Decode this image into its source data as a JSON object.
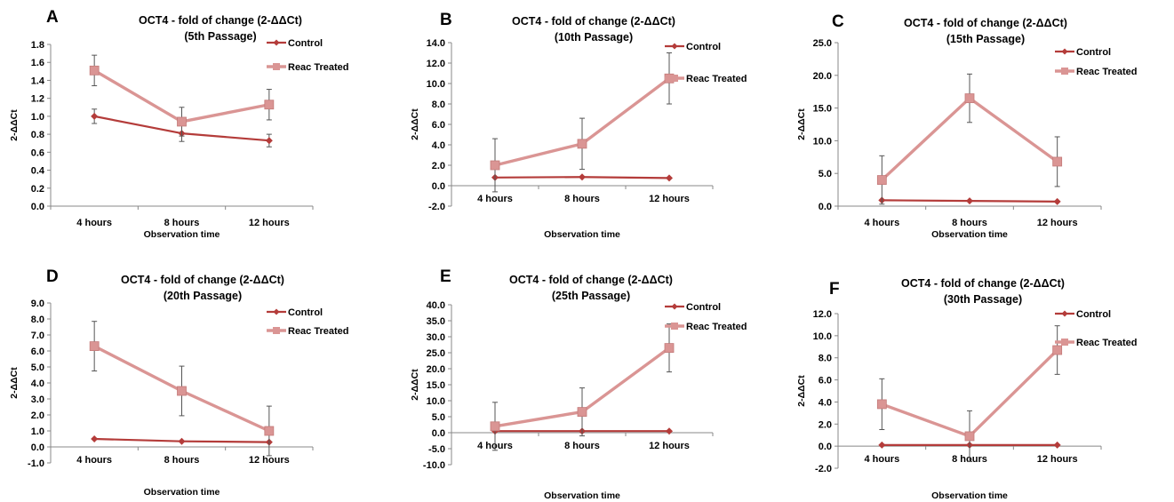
{
  "figure": {
    "colors": {
      "control": "#B43C3A",
      "reac_treated": "#DA9594",
      "axis": "#888888",
      "error_bar": "#555555"
    }
  },
  "chart_data": [
    {
      "panel": "A",
      "type": "line",
      "title_line1": "OCT4 - fold of change (2-ΔΔCt)",
      "title_line2": "(5th Passage)",
      "xlabel": "Observation time",
      "ylabel": "2-ΔΔCt",
      "categories": [
        "4 hours",
        "8 hours",
        "12 hours"
      ],
      "ylim": [
        0,
        1.8
      ],
      "ystep": 0.2,
      "decimals": 1,
      "series": [
        {
          "name": "Control",
          "values": [
            1.0,
            0.81,
            0.73
          ],
          "errors": [
            0.08,
            0.09,
            0.07
          ]
        },
        {
          "name": "Reac Treated",
          "values": [
            1.51,
            0.94,
            1.13
          ],
          "errors": [
            0.17,
            0.16,
            0.17
          ]
        }
      ]
    },
    {
      "panel": "B",
      "type": "line",
      "title_line1": "OCT4 - fold of change (2-ΔΔCt)",
      "title_line2": "(10th Passage)",
      "xlabel": "Observation time",
      "ylabel": "2-ΔΔCt",
      "categories": [
        "4 hours",
        "8 hours",
        "12 hours"
      ],
      "ylim": [
        -2,
        14
      ],
      "ystep": 2,
      "decimals": 1,
      "series": [
        {
          "name": "Control",
          "values": [
            0.8,
            0.85,
            0.75
          ],
          "errors": [
            0,
            0,
            0
          ]
        },
        {
          "name": "Reac Treated",
          "values": [
            2.0,
            4.1,
            10.5
          ],
          "errors": [
            2.6,
            2.5,
            2.5
          ]
        }
      ]
    },
    {
      "panel": "C",
      "type": "line",
      "title_line1": "OCT4 - fold of change (2-ΔΔCt)",
      "title_line2": "(15th Passage)",
      "xlabel": "Observation time",
      "ylabel": "2-ΔΔCt",
      "categories": [
        "4 hours",
        "8 hours",
        "12 hours"
      ],
      "ylim": [
        0,
        25
      ],
      "ystep": 5,
      "decimals": 1,
      "series": [
        {
          "name": "Control",
          "values": [
            0.9,
            0.8,
            0.7
          ],
          "errors": [
            0,
            0,
            0
          ]
        },
        {
          "name": "Reac Treated",
          "values": [
            4.0,
            16.5,
            6.8
          ],
          "errors": [
            3.7,
            3.7,
            3.8
          ]
        }
      ]
    },
    {
      "panel": "D",
      "type": "line",
      "title_line1": "OCT4 - fold of change (2-ΔΔCt)",
      "title_line2": "(20th Passage)",
      "xlabel": "Observation time",
      "ylabel": "2-ΔΔCt",
      "categories": [
        "4 hours",
        "8 hours",
        "12 hours"
      ],
      "ylim": [
        -1,
        9
      ],
      "ystep": 1,
      "decimals": 1,
      "series": [
        {
          "name": "Control",
          "values": [
            0.5,
            0.35,
            0.3
          ],
          "errors": [
            0,
            0,
            0
          ]
        },
        {
          "name": "Reac Treated",
          "values": [
            6.3,
            3.5,
            1.0
          ],
          "errors": [
            1.55,
            1.55,
            1.55
          ]
        }
      ]
    },
    {
      "panel": "E",
      "type": "line",
      "title_line1": "OCT4 - fold of change (2-ΔΔCt)",
      "title_line2": "(25th Passage)",
      "xlabel": "Observation time",
      "ylabel": "2-ΔΔCt",
      "categories": [
        "4 hours",
        "8 hours",
        "12 hours"
      ],
      "ylim": [
        -10,
        40
      ],
      "ystep": 5,
      "decimals": 1,
      "series": [
        {
          "name": "Control",
          "values": [
            0.5,
            0.5,
            0.5
          ],
          "errors": [
            0,
            0,
            0
          ]
        },
        {
          "name": "Reac Treated",
          "values": [
            2.0,
            6.5,
            26.5
          ],
          "errors": [
            7.5,
            7.5,
            7.5
          ]
        }
      ]
    },
    {
      "panel": "F",
      "type": "line",
      "title_line1": "OCT4  - fold of change (2-ΔΔCt)",
      "title_line2": "(30th Passage)",
      "xlabel": "Observation time",
      "ylabel": "2-ΔΔCt",
      "categories": [
        "4 hours",
        "8 hours",
        "12 hours"
      ],
      "ylim": [
        -2,
        12
      ],
      "ystep": 2,
      "decimals": 1,
      "series": [
        {
          "name": "Control",
          "values": [
            0.1,
            0.1,
            0.1
          ],
          "errors": [
            0,
            0,
            0
          ]
        },
        {
          "name": "Reac Treated",
          "values": [
            3.8,
            0.9,
            8.7
          ],
          "errors": [
            2.3,
            2.3,
            2.2
          ]
        }
      ]
    }
  ]
}
